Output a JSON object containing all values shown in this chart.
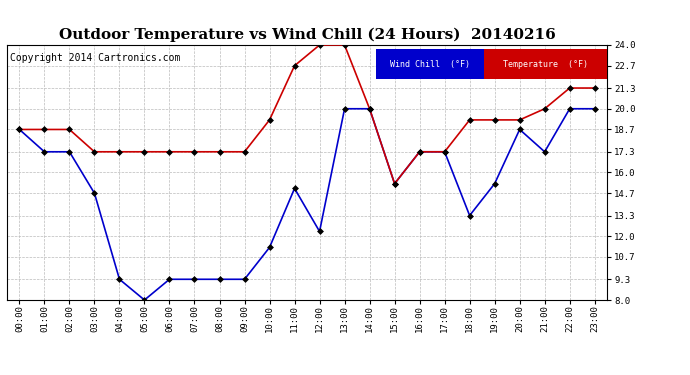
{
  "title": "Outdoor Temperature vs Wind Chill (24 Hours)  20140216",
  "copyright": "Copyright 2014 Cartronics.com",
  "hours": [
    "00:00",
    "01:00",
    "02:00",
    "03:00",
    "04:00",
    "05:00",
    "06:00",
    "07:00",
    "08:00",
    "09:00",
    "10:00",
    "11:00",
    "12:00",
    "13:00",
    "14:00",
    "15:00",
    "16:00",
    "17:00",
    "18:00",
    "19:00",
    "20:00",
    "21:00",
    "22:00",
    "23:00"
  ],
  "temperature": [
    18.7,
    18.7,
    18.7,
    17.3,
    17.3,
    17.3,
    17.3,
    17.3,
    17.3,
    17.3,
    19.3,
    22.7,
    24.0,
    24.0,
    20.0,
    15.3,
    17.3,
    17.3,
    19.3,
    19.3,
    19.3,
    20.0,
    21.3,
    21.3
  ],
  "wind_chill": [
    18.7,
    17.3,
    17.3,
    14.7,
    9.3,
    8.0,
    9.3,
    9.3,
    9.3,
    9.3,
    11.3,
    15.0,
    12.3,
    20.0,
    20.0,
    15.3,
    17.3,
    17.3,
    13.3,
    15.3,
    18.7,
    17.3,
    20.0,
    20.0
  ],
  "temp_color": "#cc0000",
  "wind_chill_color": "#0000cc",
  "bg_color": "#ffffff",
  "plot_bg_color": "#ffffff",
  "grid_color": "#bbbbbb",
  "ylim": [
    8.0,
    24.0
  ],
  "yticks": [
    8.0,
    9.3,
    10.7,
    12.0,
    13.3,
    14.7,
    16.0,
    17.3,
    18.7,
    20.0,
    21.3,
    22.7,
    24.0
  ],
  "legend_wind_chill_bg": "#0000cc",
  "legend_temp_bg": "#cc0000",
  "legend_text_color": "#ffffff",
  "title_fontsize": 11,
  "copyright_fontsize": 7,
  "marker": "D",
  "marker_size": 3,
  "marker_color": "#000000"
}
